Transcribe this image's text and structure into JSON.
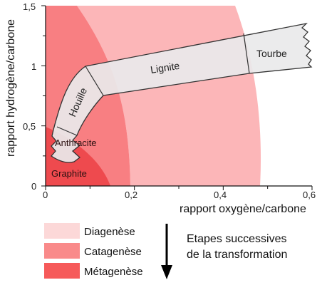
{
  "axes": {
    "x_title": "rapport oxygène/carbone",
    "y_title": "rapport hydrogène/carbone",
    "x_ticks": [
      "0",
      "0,2",
      "0,4",
      "0,6"
    ],
    "y_ticks": [
      "0",
      "0,5",
      "1",
      "1,5"
    ],
    "x_range": [
      0,
      0.6
    ],
    "y_range": [
      0,
      1.5
    ]
  },
  "band_labels": {
    "tourbe": "Tourbe",
    "lignite": "Lignite",
    "houille": "Houille",
    "anthracite": "Anthracite",
    "graphite": "Graphite"
  },
  "legend": [
    {
      "label": "Diagenèse",
      "color": "#fcd8d8"
    },
    {
      "label": "Catagenèse",
      "color": "#f98a8a"
    },
    {
      "label": "Métagenèse",
      "color": "#f65a5a"
    }
  ],
  "stages_text": {
    "line1": "Etapes successives",
    "line2": "de la transformation"
  },
  "colors": {
    "zone_light": "#fcb6b8",
    "zone_mid": "#f87f82",
    "zone_dark": "#ee4a4e",
    "band_fill": "#e9e9ea"
  }
}
